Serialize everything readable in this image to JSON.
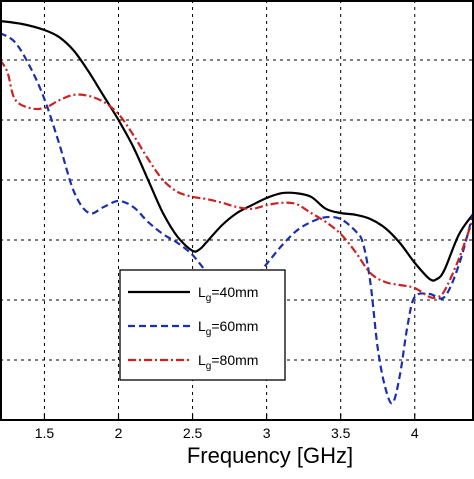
{
  "chart_data": {
    "type": "line",
    "xlabel": "Frequency [GHz]",
    "xlim": [
      1.2,
      4.4
    ],
    "ylim": [
      0,
      7
    ],
    "x_ticks": [
      {
        "value": 1.5,
        "label": "1.5"
      },
      {
        "value": 2.0,
        "label": "2"
      },
      {
        "value": 2.5,
        "label": "2.5"
      },
      {
        "value": 3.0,
        "label": "3"
      },
      {
        "value": 3.5,
        "label": "3.5"
      },
      {
        "value": 4.0,
        "label": "4"
      }
    ],
    "y_grid": [
      1,
      2,
      3,
      4,
      5,
      6
    ],
    "grid": true,
    "grid_style": "dashed",
    "legend_position": "lower-center",
    "series": [
      {
        "name_base": "L",
        "name_sub": "g",
        "name_rest": "=40mm",
        "color": "#000000",
        "dash": "solid",
        "x": [
          1.2,
          1.35,
          1.5,
          1.6,
          1.7,
          1.8,
          1.9,
          2.0,
          2.1,
          2.2,
          2.3,
          2.4,
          2.5,
          2.55,
          2.6,
          2.7,
          2.8,
          2.9,
          3.0,
          3.1,
          3.2,
          3.3,
          3.4,
          3.5,
          3.6,
          3.7,
          3.8,
          3.9,
          4.0,
          4.1,
          4.15,
          4.2,
          4.3,
          4.4
        ],
        "y": [
          6.65,
          6.6,
          6.5,
          6.38,
          6.15,
          5.8,
          5.4,
          5.0,
          4.55,
          4.0,
          3.45,
          3.05,
          2.82,
          2.85,
          2.98,
          3.25,
          3.45,
          3.58,
          3.7,
          3.78,
          3.78,
          3.72,
          3.52,
          3.45,
          3.42,
          3.35,
          3.2,
          2.95,
          2.62,
          2.35,
          2.35,
          2.5,
          3.1,
          3.45
        ]
      },
      {
        "name_base": "L",
        "name_sub": "g",
        "name_rest": "=60mm",
        "color": "#1a2fb0",
        "dash": "dashed",
        "x": [
          1.2,
          1.3,
          1.4,
          1.5,
          1.6,
          1.7,
          1.8,
          1.9,
          2.0,
          2.1,
          2.2,
          2.3,
          2.4,
          2.5,
          2.6,
          2.7,
          2.8,
          2.9,
          3.0,
          3.1,
          3.2,
          3.3,
          3.4,
          3.5,
          3.6,
          3.65,
          3.7,
          3.75,
          3.8,
          3.85,
          3.9,
          3.95,
          4.0,
          4.1,
          4.2,
          4.3,
          4.4
        ],
        "y": [
          6.45,
          6.3,
          5.9,
          5.35,
          4.6,
          3.8,
          3.45,
          3.55,
          3.65,
          3.55,
          3.3,
          3.1,
          2.95,
          2.75,
          2.45,
          2.2,
          2.15,
          2.3,
          2.6,
          2.9,
          3.15,
          3.3,
          3.38,
          3.35,
          3.15,
          2.95,
          2.3,
          1.2,
          0.55,
          0.28,
          0.75,
          1.55,
          2.05,
          2.1,
          2.05,
          2.6,
          3.5
        ]
      },
      {
        "name_base": "L",
        "name_sub": "g",
        "name_rest": "=80mm",
        "color": "#cc2222",
        "dash": "dashdot",
        "x": [
          1.2,
          1.25,
          1.3,
          1.4,
          1.5,
          1.6,
          1.7,
          1.8,
          1.9,
          2.0,
          2.1,
          2.2,
          2.3,
          2.4,
          2.5,
          2.6,
          2.7,
          2.8,
          2.9,
          3.0,
          3.1,
          3.2,
          3.3,
          3.4,
          3.5,
          3.6,
          3.7,
          3.8,
          3.9,
          4.0,
          4.1,
          4.15,
          4.2,
          4.3,
          4.4
        ],
        "y": [
          6.0,
          5.8,
          5.35,
          5.2,
          5.2,
          5.33,
          5.42,
          5.4,
          5.3,
          5.1,
          4.75,
          4.35,
          4.0,
          3.8,
          3.72,
          3.68,
          3.62,
          3.55,
          3.52,
          3.58,
          3.62,
          3.6,
          3.45,
          3.3,
          3.1,
          2.8,
          2.45,
          2.3,
          2.25,
          2.2,
          2.05,
          2.05,
          2.15,
          2.7,
          3.4
        ]
      }
    ]
  }
}
